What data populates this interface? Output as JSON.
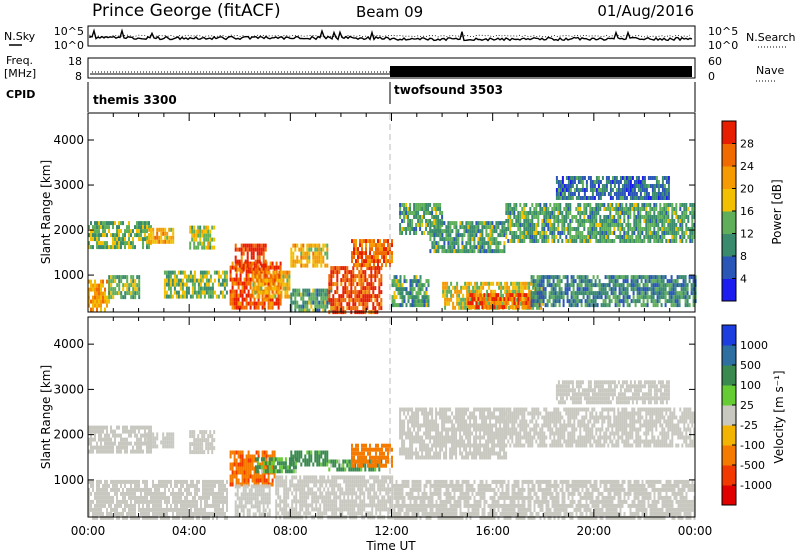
{
  "header": {
    "station": "Prince George (fitACF)",
    "beam": "Beam 09",
    "date": "01/Aug/2016"
  },
  "noise_panel": {
    "left_label": "N.Sky",
    "right_label": "N.Search",
    "y_ticks": [
      "10^5",
      "10^0"
    ],
    "right_ticks": [
      "10^5",
      "10^0"
    ]
  },
  "freq_panel": {
    "label_line1": "Freq.",
    "label_line2": "[MHz]",
    "y_ticks": [
      "18",
      "8"
    ],
    "right_ticks": [
      "60",
      "0"
    ],
    "right_label": "Nave"
  },
  "cpid_panel": {
    "label": "CPID",
    "modes": [
      {
        "name": "themis 3300",
        "start_hour": 0
      },
      {
        "name": "twofsound 3503",
        "start_hour": 12
      }
    ]
  },
  "time_axis": {
    "ticks": [
      "00:00",
      "04:00",
      "08:00",
      "12:00",
      "16:00",
      "20:00",
      "00:00"
    ],
    "label": "Time UT",
    "range_hours": [
      0,
      24
    ]
  },
  "chart_data": [
    {
      "type": "heatmap",
      "quantity": "power",
      "ylabel": "Slant Range [km]",
      "ylim": [
        180,
        4600
      ],
      "y_ticks": [
        "1000",
        "2000",
        "3000",
        "4000"
      ],
      "colorbar_label": "Power [dB]",
      "colorbar_ticks": [
        "4",
        "8",
        "12",
        "16",
        "20",
        "24",
        "28"
      ],
      "colorbar_colors": [
        "#1c1cf0",
        "#2a56b8",
        "#3a8a6e",
        "#5fae5a",
        "#f2c000",
        "#f59a00",
        "#f06a00",
        "#e81e00"
      ],
      "echo_regions": [
        {
          "t0": 0.0,
          "t1": 0.8,
          "r0": 200,
          "r1": 900,
          "power_db": 22
        },
        {
          "t0": 0.8,
          "t1": 2.0,
          "r0": 500,
          "r1": 1000,
          "power_db": 14
        },
        {
          "t0": 0.0,
          "t1": 2.5,
          "r0": 1650,
          "r1": 2200,
          "power_db": 14
        },
        {
          "t0": 2.3,
          "t1": 3.4,
          "r0": 1750,
          "r1": 2050,
          "power_db": 20
        },
        {
          "t0": 3.0,
          "t1": 5.5,
          "r0": 500,
          "r1": 1100,
          "power_db": 14
        },
        {
          "t0": 4.0,
          "t1": 5.0,
          "r0": 1650,
          "r1": 2100,
          "power_db": 16
        },
        {
          "t0": 5.6,
          "t1": 7.6,
          "r0": 250,
          "r1": 1300,
          "power_db": 28
        },
        {
          "t0": 5.8,
          "t1": 7.0,
          "r0": 1100,
          "r1": 1700,
          "power_db": 28
        },
        {
          "t0": 6.5,
          "t1": 8.0,
          "r0": 500,
          "r1": 1100,
          "power_db": 20
        },
        {
          "t0": 8.0,
          "t1": 9.5,
          "r0": 1200,
          "r1": 1700,
          "power_db": 20
        },
        {
          "t0": 8.0,
          "t1": 9.6,
          "r0": 200,
          "r1": 700,
          "power_db": 12
        },
        {
          "t0": 9.5,
          "t1": 11.6,
          "r0": 200,
          "r1": 1200,
          "power_db": 28
        },
        {
          "t0": 10.4,
          "t1": 12.0,
          "r0": 1200,
          "r1": 1800,
          "power_db": 26
        },
        {
          "t0": 12.0,
          "t1": 13.5,
          "r0": 300,
          "r1": 1000,
          "power_db": 12
        },
        {
          "t0": 12.3,
          "t1": 14.0,
          "r0": 1900,
          "r1": 2600,
          "power_db": 12
        },
        {
          "t0": 13.5,
          "t1": 16.5,
          "r0": 1500,
          "r1": 2200,
          "power_db": 12
        },
        {
          "t0": 14.0,
          "t1": 18.0,
          "r0": 250,
          "r1": 850,
          "power_db": 18
        },
        {
          "t0": 15.0,
          "t1": 17.5,
          "r0": 250,
          "r1": 600,
          "power_db": 26
        },
        {
          "t0": 17.5,
          "t1": 24.0,
          "r0": 300,
          "r1": 1000,
          "power_db": 10
        },
        {
          "t0": 16.5,
          "t1": 24.0,
          "r0": 1800,
          "r1": 2600,
          "power_db": 12
        },
        {
          "t0": 18.5,
          "t1": 23.0,
          "r0": 2700,
          "r1": 3200,
          "power_db": 8
        }
      ]
    },
    {
      "type": "heatmap",
      "quantity": "velocity",
      "ylabel": "Slant Range [km]",
      "ylim": [
        180,
        4600
      ],
      "y_ticks": [
        "1000",
        "2000",
        "3000",
        "4000"
      ],
      "colorbar_label": "Velocity [m s⁻¹]",
      "colorbar_ticks": [
        "1000",
        "500",
        "100",
        "25",
        "-25",
        "-100",
        "-500",
        "-1000"
      ],
      "colorbar_colors": [
        "#1c3ee0",
        "#2c6fa0",
        "#3a8a50",
        "#66cc33",
        "#c8c8c0",
        "#f2b400",
        "#f57a00",
        "#f23a00",
        "#e00000"
      ],
      "echo_regions": [
        {
          "t0": 0.0,
          "t1": 2.5,
          "r0": 1650,
          "r1": 2200,
          "velocity": 0
        },
        {
          "t0": 2.3,
          "t1": 3.4,
          "r0": 1750,
          "r1": 2050,
          "velocity": 0
        },
        {
          "t0": 4.0,
          "t1": 5.0,
          "r0": 1650,
          "r1": 2100,
          "velocity": 0
        },
        {
          "t0": 0.0,
          "t1": 5.5,
          "r0": 200,
          "r1": 1000,
          "velocity": 0
        },
        {
          "t0": 5.6,
          "t1": 7.4,
          "r0": 900,
          "r1": 1650,
          "velocity": -400
        },
        {
          "t0": 5.8,
          "t1": 7.2,
          "r0": 250,
          "r1": 900,
          "velocity": 0
        },
        {
          "t0": 6.6,
          "t1": 8.2,
          "r0": 1200,
          "r1": 1500,
          "velocity": 150
        },
        {
          "t0": 8.0,
          "t1": 9.5,
          "r0": 1300,
          "r1": 1650,
          "velocity": 200
        },
        {
          "t0": 9.5,
          "t1": 11.6,
          "r0": 1200,
          "r1": 1450,
          "velocity": 150
        },
        {
          "t0": 10.4,
          "t1": 12.0,
          "r0": 1350,
          "r1": 1800,
          "velocity": -300
        },
        {
          "t0": 7.4,
          "t1": 12.0,
          "r0": 200,
          "r1": 1100,
          "velocity": 0
        },
        {
          "t0": 12.0,
          "t1": 24.0,
          "r0": 200,
          "r1": 1000,
          "velocity": 0
        },
        {
          "t0": 12.3,
          "t1": 16.5,
          "r0": 1500,
          "r1": 2600,
          "velocity": 0
        },
        {
          "t0": 16.5,
          "t1": 24.0,
          "r0": 1800,
          "r1": 2600,
          "velocity": 0
        },
        {
          "t0": 18.5,
          "t1": 23.0,
          "r0": 2700,
          "r1": 3200,
          "velocity": 0
        }
      ]
    }
  ]
}
